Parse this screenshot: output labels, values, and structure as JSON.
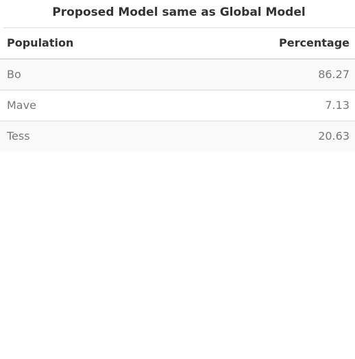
{
  "table": {
    "title": "Proposed Model same as Global Model",
    "columns": [
      "Population",
      "Percentage"
    ],
    "rows": [
      {
        "population": "Bo",
        "percentage": "86.27"
      },
      {
        "population": "Mave",
        "percentage": "7.13"
      },
      {
        "population": "Tess",
        "percentage": "20.63"
      }
    ],
    "colors": {
      "header_text": "#333333",
      "cell_text": "#777777",
      "stripe": "#f9f9f9",
      "rule": "#dddddd"
    }
  }
}
